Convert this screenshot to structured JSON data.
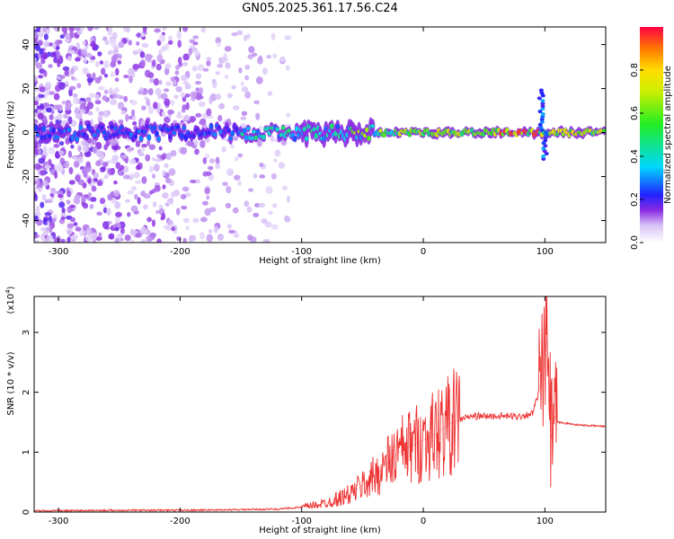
{
  "title": "GN05.2025.361.17.56.C24",
  "chart_data": [
    {
      "type": "heatmap",
      "name": "spectrogram",
      "xlabel": "Height of straight line (km)",
      "ylabel": "Frequency (Hz)",
      "xlim": [
        -320,
        150
      ],
      "ylim": [
        -50,
        48
      ],
      "xticks": [
        -300,
        -200,
        -100,
        0,
        100
      ],
      "yticks": [
        -40,
        -20,
        0,
        20,
        40
      ],
      "colorbar": {
        "label": "Normalized spectral amplitude",
        "range": [
          0.0,
          1.0
        ],
        "ticks": [
          0.0,
          0.2,
          0.4,
          0.6,
          0.8
        ],
        "tick_labels": [
          "0.0",
          "0.2",
          "0.4",
          "0.6",
          "0.8"
        ]
      },
      "features": [
        {
          "desc": "scattered purple noise",
          "x_range": [
            -320,
            -110
          ],
          "freq_range": [
            -50,
            48
          ],
          "amplitude": 0.1
        },
        {
          "desc": "main signal band",
          "x_range": [
            -320,
            150
          ],
          "center_freq_hz": 0,
          "amplitude_peak": 1.0
        },
        {
          "desc": "feature near 100 km",
          "x": 97,
          "freq_range": [
            -12,
            20
          ]
        }
      ]
    },
    {
      "type": "line",
      "name": "snr",
      "xlabel": "Height of straight line (km)",
      "ylabel": "SNR (10 * v/v)",
      "multiplier": "(x10",
      "multiplier_exp": "4",
      "multiplier_close": ")",
      "xlim": [
        -320,
        150
      ],
      "ylim": [
        0,
        3.6
      ],
      "xticks": [
        -300,
        -200,
        -100,
        0,
        100
      ],
      "yticks": [
        0,
        1,
        2,
        3
      ],
      "color": "#ee3333",
      "series": [
        {
          "name": "SNR",
          "x": [
            -320,
            -250,
            -200,
            -150,
            -120,
            -100,
            -80,
            -60,
            -40,
            -30,
            -20,
            -10,
            0,
            10,
            20,
            30,
            40,
            60,
            80,
            90,
            95,
            100,
            102,
            105,
            108,
            110,
            130,
            150
          ],
          "y": [
            0.02,
            0.03,
            0.03,
            0.04,
            0.05,
            0.08,
            0.15,
            0.3,
            0.6,
            0.8,
            1.0,
            1.1,
            1.2,
            1.3,
            1.45,
            1.55,
            1.6,
            1.6,
            1.6,
            1.65,
            2.0,
            2.5,
            3.0,
            1.2,
            1.6,
            1.5,
            1.45,
            1.43
          ]
        }
      ]
    }
  ]
}
